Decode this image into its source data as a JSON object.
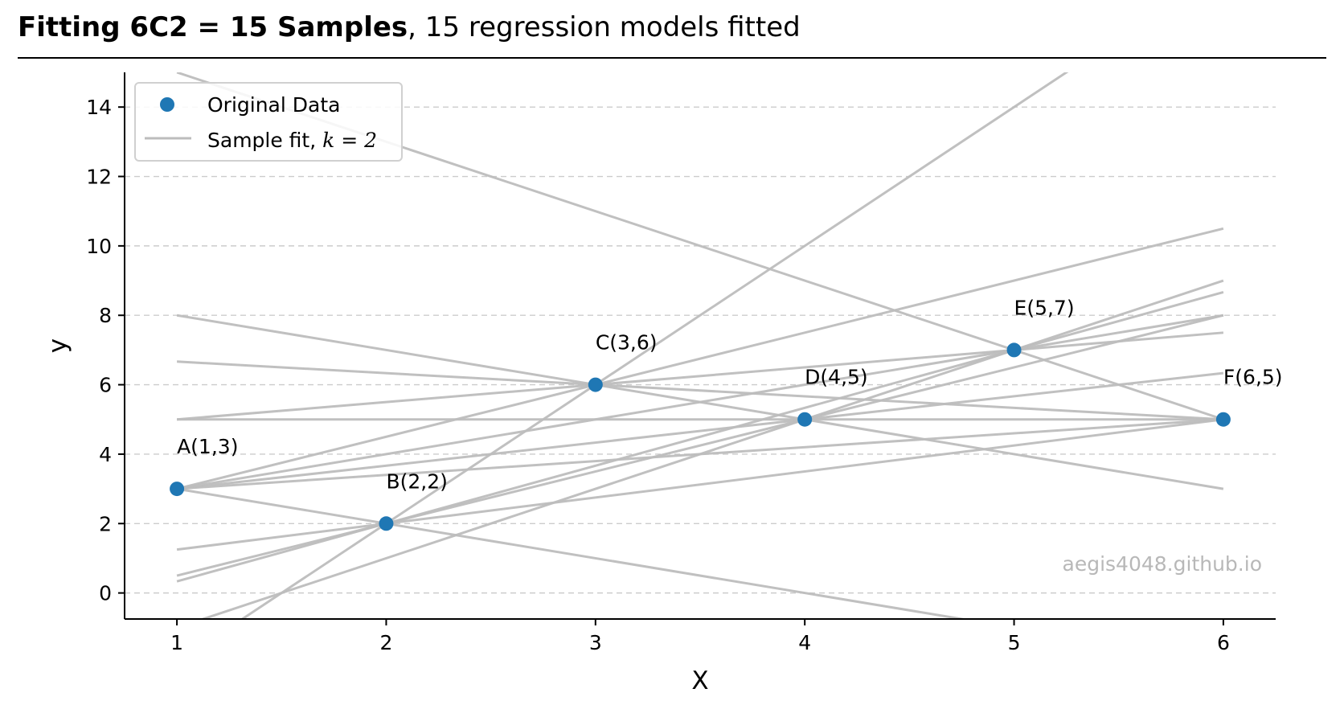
{
  "header": {
    "title_bold": "Fitting 6C2  =  15 Samples",
    "title_rest": ", 15 regression models fitted"
  },
  "watermark": "aegis4048.github.io",
  "colors": {
    "points": "#1f77b4",
    "fit_lines": "#bdbdbd",
    "grid": "#cccccc",
    "watermark": "#b8b8b8"
  },
  "chart_data": {
    "type": "scatter",
    "xlabel": "X",
    "ylabel": "y",
    "xlim": [
      0.75,
      6.25
    ],
    "ylim": [
      -0.75,
      15
    ],
    "xticks": [
      1,
      2,
      3,
      4,
      5,
      6
    ],
    "yticks": [
      0,
      2,
      4,
      6,
      8,
      10,
      12,
      14
    ],
    "grid": "horizontal dashed",
    "legend_position": "upper-left",
    "legend": [
      {
        "label": "Original Data",
        "kind": "marker"
      },
      {
        "label": "Sample fit, ",
        "math": "k = 2",
        "kind": "line"
      }
    ],
    "points": [
      {
        "label": "A(1,3)",
        "x": 1,
        "y": 3
      },
      {
        "label": "B(2,2)",
        "x": 2,
        "y": 2
      },
      {
        "label": "C(3,6)",
        "x": 3,
        "y": 6
      },
      {
        "label": "D(4,5)",
        "x": 4,
        "y": 5
      },
      {
        "label": "E(5,7)",
        "x": 5,
        "y": 7
      },
      {
        "label": "F(6,5)",
        "x": 6,
        "y": 5
      }
    ],
    "fit_lines": [
      {
        "pair": "AB",
        "slope": -1,
        "intercept": 4
      },
      {
        "pair": "AC",
        "slope": 1.5,
        "intercept": 1.5
      },
      {
        "pair": "AD",
        "slope": 0.6667,
        "intercept": 2.3333
      },
      {
        "pair": "AE",
        "slope": 1,
        "intercept": 2
      },
      {
        "pair": "AF",
        "slope": 0.4,
        "intercept": 2.6
      },
      {
        "pair": "BC",
        "slope": 4,
        "intercept": -6
      },
      {
        "pair": "BD",
        "slope": 1.5,
        "intercept": -1
      },
      {
        "pair": "BE",
        "slope": 1.6667,
        "intercept": -1.3333
      },
      {
        "pair": "BF",
        "slope": 0.75,
        "intercept": 0.5
      },
      {
        "pair": "CD",
        "slope": -1,
        "intercept": 9
      },
      {
        "pair": "CE",
        "slope": 0.5,
        "intercept": 4.5
      },
      {
        "pair": "CF",
        "slope": -0.3333,
        "intercept": 7
      },
      {
        "pair": "DE",
        "slope": 2,
        "intercept": -3
      },
      {
        "pair": "DF",
        "slope": 0,
        "intercept": 5
      },
      {
        "pair": "EF",
        "slope": -2,
        "intercept": 17
      }
    ]
  }
}
